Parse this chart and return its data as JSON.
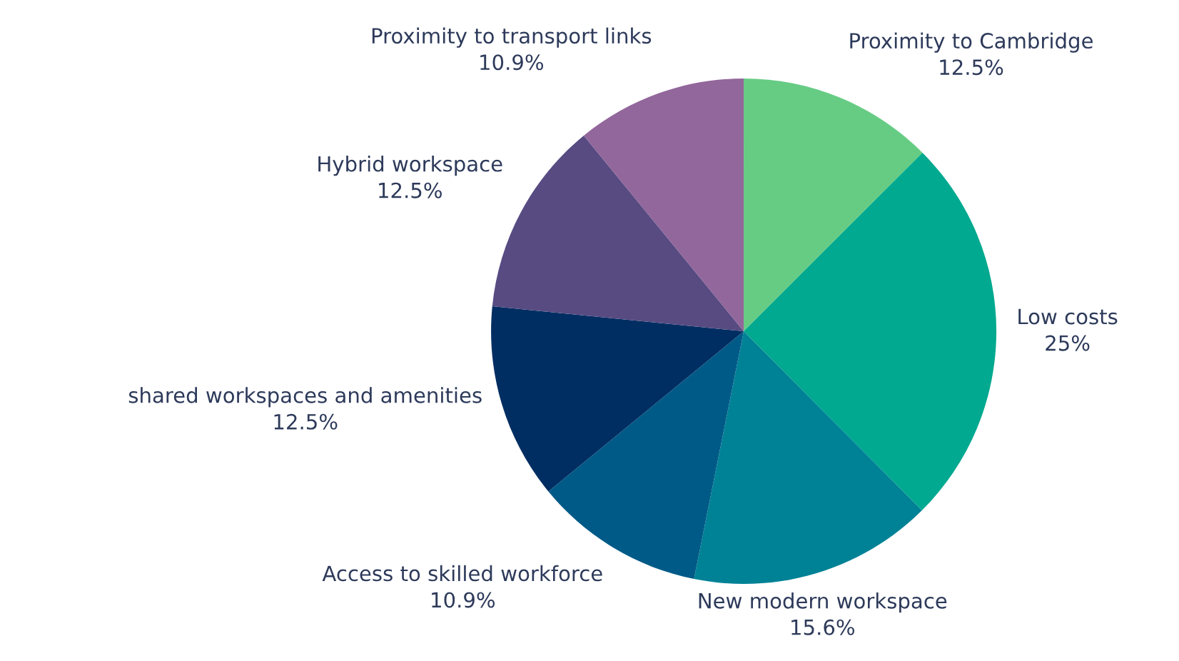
{
  "chart_data": {
    "type": "pie",
    "categories": [
      "Proximity to Cambridge",
      "Low costs",
      "New modern workspace",
      "Access to skilled workforce",
      "shared workspaces and amenities",
      "Hybrid workspace",
      "Proximity to transport links"
    ],
    "values": [
      12.5,
      25,
      15.6,
      10.9,
      12.5,
      12.5,
      10.9
    ],
    "value_labels": [
      "12.5%",
      "25%",
      "15.6%",
      "10.9%",
      "12.5%",
      "12.5%",
      "10.9%"
    ],
    "colors": [
      "#66cc84",
      "#00a98f",
      "#008296",
      "#005a87",
      "#002e62",
      "#574b82",
      "#92679b"
    ]
  }
}
